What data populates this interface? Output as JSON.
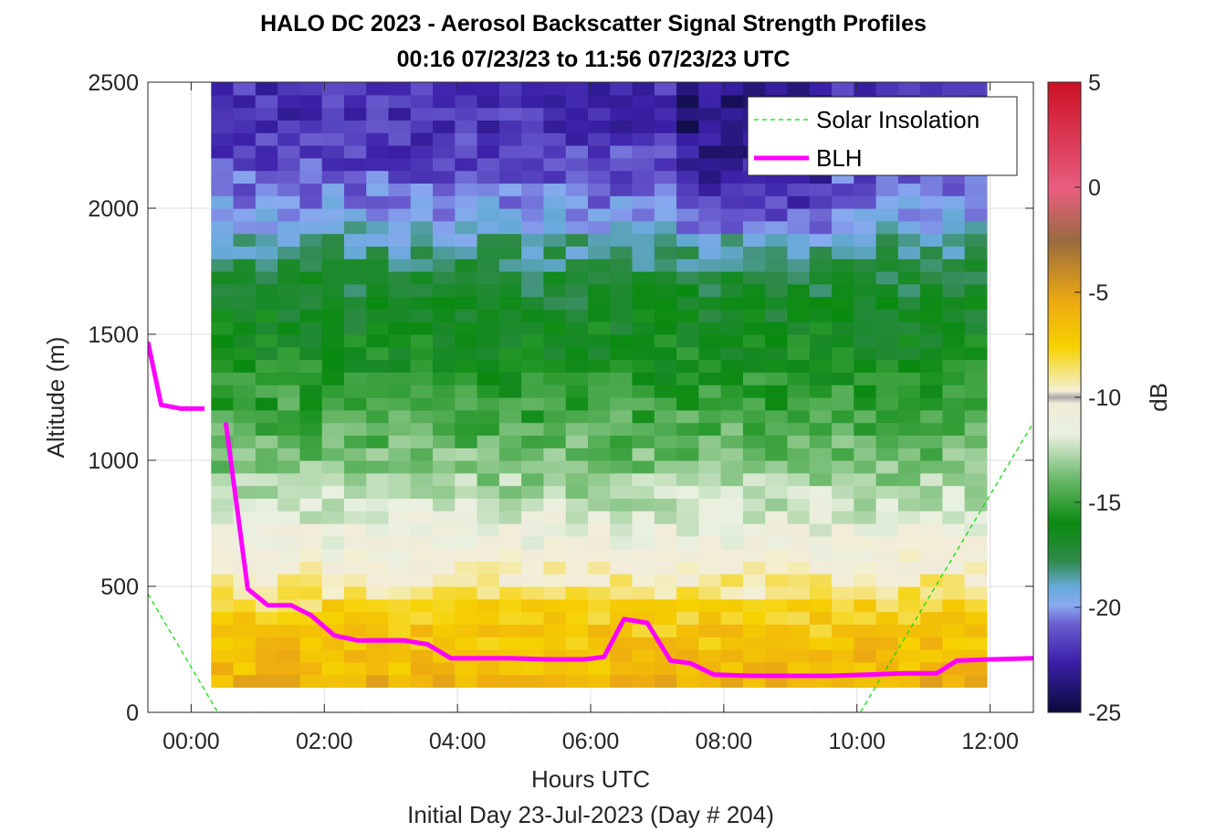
{
  "chart_data": {
    "type": "heatmap",
    "title": "HALO DC 2023 - Aerosol Backscatter Signal Strength Profiles",
    "subtitle": "00:16 07/23/23 to 11:56 07/23/23  UTC",
    "xlabel": "Hours UTC",
    "xlabel2": "Initial Day 23-Jul-2023 (Day # 204)",
    "ylabel": "Altitude (m)",
    "colorbar_label": "dB",
    "xlim": [
      -0.65,
      12.65
    ],
    "ylim": [
      0,
      2500
    ],
    "clim": [
      -25,
      5
    ],
    "x_ticks": [
      0,
      2,
      4,
      6,
      8,
      10,
      12
    ],
    "x_tick_labels": [
      "00:00",
      "02:00",
      "04:00",
      "06:00",
      "08:00",
      "10:00",
      "12:00"
    ],
    "y_ticks": [
      0,
      500,
      1000,
      1500,
      2000,
      2500
    ],
    "y_tick_labels": [
      "0",
      "500",
      "1000",
      "1500",
      "2000",
      "2500"
    ],
    "c_ticks": [
      5,
      0,
      -5,
      -10,
      -15,
      -20,
      -25
    ],
    "c_tick_labels": [
      "5",
      "0",
      "-5",
      "-10",
      "-15",
      "-20",
      "-25"
    ],
    "grid": true,
    "legend_position": "top-right",
    "heatmap": {
      "x_start": 0.3,
      "x_end": 11.95,
      "y_start": 100,
      "y_end": 2500,
      "n_cols": 35,
      "n_rows": 48,
      "layers": [
        {
          "y_min": 100,
          "y_max": 350,
          "value": -6.5
        },
        {
          "y_min": 350,
          "y_max": 500,
          "value": -8
        },
        {
          "y_min": 500,
          "y_max": 650,
          "value": -10
        },
        {
          "y_min": 650,
          "y_max": 850,
          "value": -11.5
        },
        {
          "y_min": 850,
          "y_max": 1100,
          "value": -13.5
        },
        {
          "y_min": 1100,
          "y_max": 1350,
          "value": -15
        },
        {
          "y_min": 1350,
          "y_max": 1750,
          "value": -16.5
        },
        {
          "y_min": 1750,
          "y_max": 1950,
          "value": -18.5
        },
        {
          "y_min": 1950,
          "y_max": 2150,
          "value": -20.5
        },
        {
          "y_min": 2150,
          "y_max": 2500,
          "value": -22
        }
      ]
    },
    "series": [
      {
        "name": "Solar Insolation",
        "style": "dashed",
        "color": "#00dd00",
        "x": [
          -0.65,
          0.4,
          10.05,
          12.65
        ],
        "y": [
          470,
          0,
          0,
          1150
        ]
      },
      {
        "name": "BLH",
        "style": "solid",
        "color": "#ff00ff",
        "segments": [
          {
            "x": [
              -0.65,
              -0.45,
              -0.15,
              0.2
            ],
            "y": [
              1470,
              1220,
              1205,
              1205
            ]
          },
          {
            "x": [
              0.52,
              0.85,
              1.15,
              1.5,
              1.8,
              2.15,
              2.5,
              2.85,
              3.2,
              3.55,
              3.9,
              4.35,
              4.8,
              5.35,
              5.9,
              6.2,
              6.5,
              6.85,
              7.2,
              7.5,
              7.85,
              8.4,
              9.0,
              9.6,
              10.2,
              10.7,
              11.2,
              11.5,
              12.0,
              12.65
            ],
            "y": [
              1150,
              490,
              425,
              425,
              385,
              305,
              285,
              285,
              285,
              270,
              215,
              215,
              215,
              210,
              210,
              220,
              370,
              355,
              205,
              195,
              150,
              145,
              145,
              145,
              150,
              155,
              155,
              205,
              210,
              215
            ]
          }
        ]
      }
    ]
  }
}
